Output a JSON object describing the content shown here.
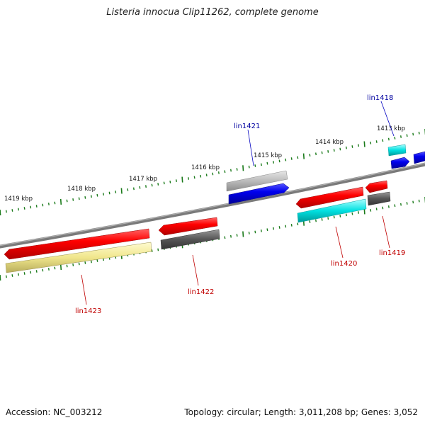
{
  "title": "Listeria innocua Clip11262, complete genome",
  "footer": {
    "accession": "Accession: NC_003212",
    "summary": "Topology: circular; Length: 3,011,208 bp; Genes: 3,052"
  },
  "scale": {
    "unit": "kbp",
    "ticks": [
      {
        "label": "1413 kbp"
      },
      {
        "label": "1414 kbp"
      },
      {
        "label": "1415 kbp"
      },
      {
        "label": "1416 kbp"
      },
      {
        "label": "1417 kbp"
      },
      {
        "label": "1418 kbp"
      },
      {
        "label": "1419 kbp"
      }
    ]
  },
  "genes": [
    {
      "label": "lin1418",
      "strand": "forward",
      "color": "#0000a0"
    },
    {
      "label": "lin1421",
      "strand": "forward",
      "color": "#0000a0"
    },
    {
      "label": "lin1419",
      "strand": "reverse",
      "color": "#c00000"
    },
    {
      "label": "lin1420",
      "strand": "reverse",
      "color": "#c00000"
    },
    {
      "label": "lin1422",
      "strand": "reverse",
      "color": "#c00000"
    },
    {
      "label": "lin1423",
      "strand": "reverse",
      "color": "#c00000"
    }
  ],
  "colors": {
    "backbone": "#808080",
    "tick": "#1a7a1a",
    "cds_forward": "#0000ee",
    "cds_reverse": "#ee0000",
    "gene_gray": "#bbbbbb",
    "gene_dark": "#555555",
    "rna_cyan": "#00e0e0",
    "rna_yellow": "#f0e68c"
  }
}
